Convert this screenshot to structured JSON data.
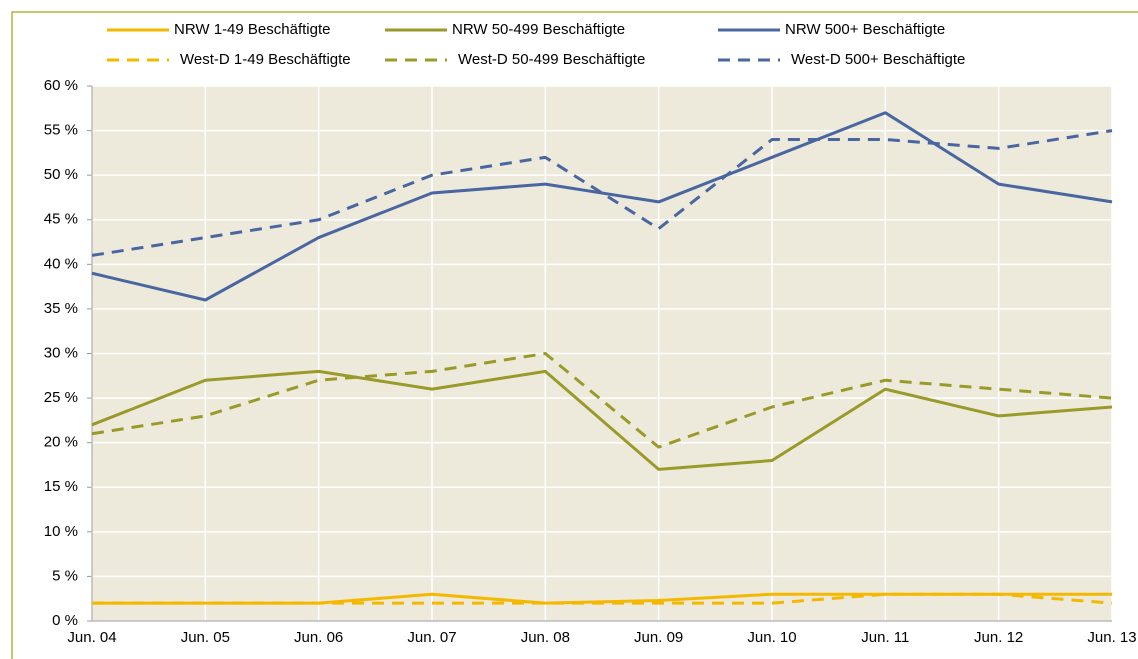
{
  "chart_data": {
    "type": "line",
    "categories": [
      "Jun. 04",
      "Jun. 05",
      "Jun. 06",
      "Jun. 07",
      "Jun. 08",
      "Jun. 09",
      "Jun. 10",
      "Jun. 11",
      "Jun. 12",
      "Jun. 13"
    ],
    "series": [
      {
        "name": "NRW 1-49 Beschäftigte",
        "color": "#f5b800",
        "dashed": false,
        "values": [
          2,
          2,
          2,
          3,
          2,
          2.3,
          3,
          3,
          3,
          3
        ]
      },
      {
        "name": "NRW 50-499 Beschäftigte",
        "color": "#9a9a2a",
        "dashed": false,
        "values": [
          22,
          27,
          28,
          26,
          28,
          17,
          18,
          26,
          23,
          24
        ]
      },
      {
        "name": "NRW 500+ Beschäftigte",
        "color": "#4a66a0",
        "dashed": false,
        "values": [
          39,
          36,
          43,
          48,
          49,
          47,
          52,
          57,
          49,
          47
        ]
      },
      {
        "name": "West-D 1-49 Beschäftigte",
        "color": "#f5b800",
        "dashed": true,
        "values": [
          2,
          2,
          2,
          2,
          2,
          2,
          2,
          3,
          3,
          2
        ]
      },
      {
        "name": "West-D 50-499 Beschäftigte",
        "color": "#9a9a2a",
        "dashed": true,
        "values": [
          21,
          23,
          27,
          28,
          30,
          19.5,
          24,
          27,
          26,
          25
        ]
      },
      {
        "name": "West-D 500+ Beschäftigte",
        "color": "#4a66a0",
        "dashed": true,
        "values": [
          41,
          43,
          45,
          50,
          52,
          44,
          54,
          54,
          53,
          55
        ]
      }
    ],
    "ylim": [
      0,
      60
    ],
    "yticks": [
      {
        "value": 0,
        "label": "0 %"
      },
      {
        "value": 5,
        "label": "5 %"
      },
      {
        "value": 10,
        "label": "10 %"
      },
      {
        "value": 15,
        "label": "15 %"
      },
      {
        "value": 20,
        "label": "20 %"
      },
      {
        "value": 25,
        "label": "25 %"
      },
      {
        "value": 30,
        "label": "30 %"
      },
      {
        "value": 35,
        "label": "35 %"
      },
      {
        "value": 40,
        "label": "40 %"
      },
      {
        "value": 45,
        "label": "45 %"
      },
      {
        "value": 50,
        "label": "50 %"
      },
      {
        "value": 55,
        "label": "55 %"
      },
      {
        "value": 60,
        "label": "60 %"
      }
    ],
    "grid": true,
    "legend": "top",
    "plot_background": "#edeadc"
  }
}
